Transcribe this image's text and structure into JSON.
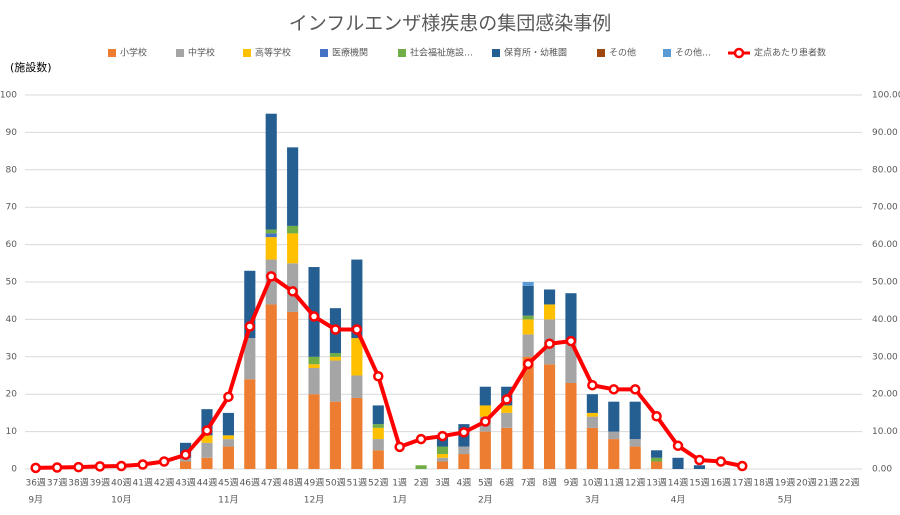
{
  "chart_data": {
    "type": "bar-line",
    "title": "インフルエンザ様疾患の集団感染事例",
    "y_label": "(施設数)",
    "categories": [
      "36週",
      "37週",
      "38週",
      "39週",
      "40週",
      "41週",
      "42週",
      "43週",
      "44週",
      "45週",
      "46週",
      "47週",
      "48週",
      "49週",
      "50週",
      "51週",
      "52週",
      "1週",
      "2週",
      "3週",
      "4週",
      "5週",
      "6週",
      "7週",
      "8週",
      "9週",
      "10週",
      "11週",
      "12週",
      "13週",
      "14週",
      "15週",
      "16週",
      "17週",
      "18週",
      "19週",
      "20週",
      "21週",
      "22週"
    ],
    "category_groups": [
      "9月",
      null,
      null,
      null,
      "10月",
      null,
      null,
      null,
      null,
      "11月",
      null,
      null,
      null,
      "12月",
      null,
      null,
      null,
      "1月",
      null,
      null,
      null,
      "2月",
      null,
      null,
      null,
      null,
      "3月",
      null,
      null,
      null,
      "4月",
      null,
      null,
      null,
      null,
      "5月",
      null,
      null,
      null
    ],
    "series": [
      {
        "name": "小学校",
        "color": "#ED7D31",
        "values": [
          0,
          0,
          0,
          0,
          0,
          0,
          0,
          2,
          3,
          6,
          24,
          44,
          42,
          20,
          18,
          19,
          5,
          0,
          0,
          2,
          4,
          10,
          11,
          30,
          28,
          23,
          11,
          8,
          6,
          2,
          0,
          0,
          0,
          0,
          0,
          0,
          0,
          0,
          0
        ]
      },
      {
        "name": "中学校",
        "color": "#A5A5A5",
        "values": [
          0,
          0,
          0,
          0,
          0,
          0,
          0,
          1,
          4,
          2,
          11,
          12,
          13,
          7,
          11,
          6,
          3,
          0,
          0,
          1,
          2,
          4,
          4,
          6,
          12,
          11,
          3,
          2,
          2,
          0,
          0,
          0,
          0,
          0,
          0,
          0,
          0,
          0,
          0
        ]
      },
      {
        "name": "高等学校",
        "color": "#FFC000",
        "values": [
          0,
          0,
          0,
          0,
          0,
          0,
          0,
          0,
          2,
          1,
          0,
          6,
          8,
          1,
          1,
          10,
          3,
          0,
          0,
          1,
          0,
          3,
          2,
          4,
          4,
          0,
          1,
          0,
          0,
          0,
          0,
          0,
          0,
          0,
          0,
          0,
          0,
          0,
          0
        ]
      },
      {
        "name": "医療機関",
        "color": "#4472C4",
        "values": [
          0,
          0,
          0,
          0,
          0,
          0,
          0,
          0,
          0,
          0,
          0,
          1,
          0,
          0,
          0,
          0,
          0,
          0,
          0,
          0,
          0,
          0,
          0,
          0,
          0,
          0,
          0,
          0,
          0,
          0,
          0,
          0,
          0,
          0,
          0,
          0,
          0,
          0,
          0
        ]
      },
      {
        "name": "社会福祉施設…",
        "color": "#70AD47",
        "values": [
          0,
          0,
          0,
          0,
          0,
          0,
          0,
          0,
          0,
          0,
          0,
          1,
          2,
          2,
          1,
          0,
          1,
          0,
          1,
          2,
          0,
          0,
          0,
          1,
          0,
          0,
          0,
          0,
          0,
          1,
          0,
          0,
          0,
          0,
          0,
          0,
          0,
          0,
          0
        ]
      },
      {
        "name": "保育所・幼稚園",
        "color": "#255E91",
        "values": [
          0,
          0,
          0,
          0,
          0,
          0,
          0,
          4,
          7,
          6,
          18,
          31,
          21,
          24,
          12,
          21,
          5,
          0,
          0,
          3,
          6,
          5,
          5,
          8,
          4,
          13,
          5,
          8,
          10,
          2,
          3,
          1,
          0,
          0,
          0,
          0,
          0,
          0,
          0
        ]
      },
      {
        "name": "その他",
        "color": "#9E480E",
        "values": [
          0,
          0,
          0,
          0,
          0,
          0,
          0,
          0,
          0,
          0,
          0,
          0,
          0,
          0,
          0,
          0,
          0,
          0,
          0,
          0,
          0,
          0,
          0,
          0,
          0,
          0,
          0,
          0,
          0,
          0,
          0,
          0,
          0,
          0,
          0,
          0,
          0,
          0,
          0
        ]
      },
      {
        "name": "その他…",
        "color": "#5B9BD5",
        "values": [
          0,
          0,
          0,
          0,
          0,
          0,
          0,
          0,
          0,
          0,
          0,
          0,
          0,
          0,
          0,
          0,
          0,
          0,
          0,
          0,
          0,
          0,
          0,
          1,
          0,
          0,
          0,
          0,
          0,
          0,
          0,
          0,
          0,
          0,
          0,
          0,
          0,
          0,
          0
        ]
      },
      {
        "name": "定点あたり患者数",
        "color": "#FF0000",
        "type": "line",
        "axis": "y2",
        "values": [
          0.3,
          0.4,
          0.5,
          0.7,
          0.8,
          1.2,
          2.0,
          3.8,
          10.3,
          19.3,
          38.1,
          51.5,
          47.5,
          40.8,
          37.3,
          37.3,
          24.8,
          5.9,
          8.0,
          8.8,
          9.8,
          12.7,
          18.6,
          28.1,
          33.5,
          34.2,
          22.4,
          21.3,
          21.3,
          14.1,
          6.2,
          2.4,
          2.0,
          0.8,
          null,
          null,
          null,
          null,
          null
        ]
      }
    ],
    "ylim": [
      0,
      100
    ],
    "yticks": [
      0,
      10,
      20,
      30,
      40,
      50,
      60,
      70,
      80,
      90,
      100
    ],
    "y2lim": [
      0,
      100
    ],
    "y2ticks": [
      {
        "value": 0,
        "label": "0.00"
      },
      {
        "value": 10,
        "label": "10.00"
      },
      {
        "value": 20,
        "label": "20.00"
      },
      {
        "value": 30,
        "label": "30.00"
      },
      {
        "value": 40,
        "label": "40.00"
      },
      {
        "value": 50,
        "label": "50.00"
      },
      {
        "value": 60,
        "label": "60.00"
      },
      {
        "value": 70,
        "label": "70.00"
      },
      {
        "value": 80,
        "label": "80.00"
      },
      {
        "value": 90,
        "label": "90.00"
      },
      {
        "value": 100,
        "label": "100.00"
      }
    ],
    "grid": true,
    "legend": "top"
  }
}
